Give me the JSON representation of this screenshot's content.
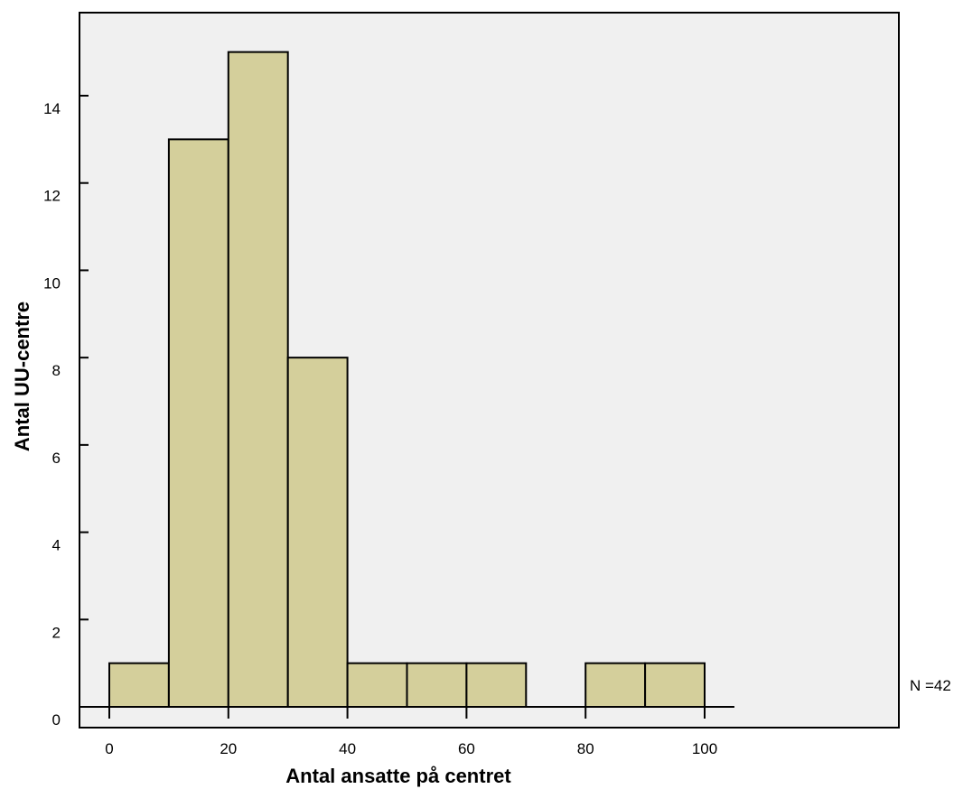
{
  "chart_data": {
    "type": "bar",
    "subtype": "histogram",
    "xlabel": "Antal ansatte på centret",
    "ylabel": "Antal UU-centre",
    "bins": [
      {
        "start": 0,
        "end": 10,
        "count": 1
      },
      {
        "start": 10,
        "end": 20,
        "count": 13
      },
      {
        "start": 20,
        "end": 30,
        "count": 15
      },
      {
        "start": 30,
        "end": 40,
        "count": 8
      },
      {
        "start": 40,
        "end": 50,
        "count": 1
      },
      {
        "start": 50,
        "end": 60,
        "count": 1
      },
      {
        "start": 60,
        "end": 70,
        "count": 1
      },
      {
        "start": 70,
        "end": 80,
        "count": 0
      },
      {
        "start": 80,
        "end": 90,
        "count": 1
      },
      {
        "start": 90,
        "end": 100,
        "count": 1
      }
    ],
    "xticks": [
      0,
      20,
      40,
      60,
      80,
      100
    ],
    "yticks": [
      0,
      2,
      4,
      6,
      8,
      10,
      12,
      14
    ],
    "xlim": [
      0,
      105
    ],
    "ylim": [
      0,
      16
    ],
    "n_label": "N =42",
    "grid": false,
    "colors": {
      "bar_fill": "#d4cf9b",
      "plot_background": "#f0f0f0",
      "outline": "#000000"
    }
  }
}
